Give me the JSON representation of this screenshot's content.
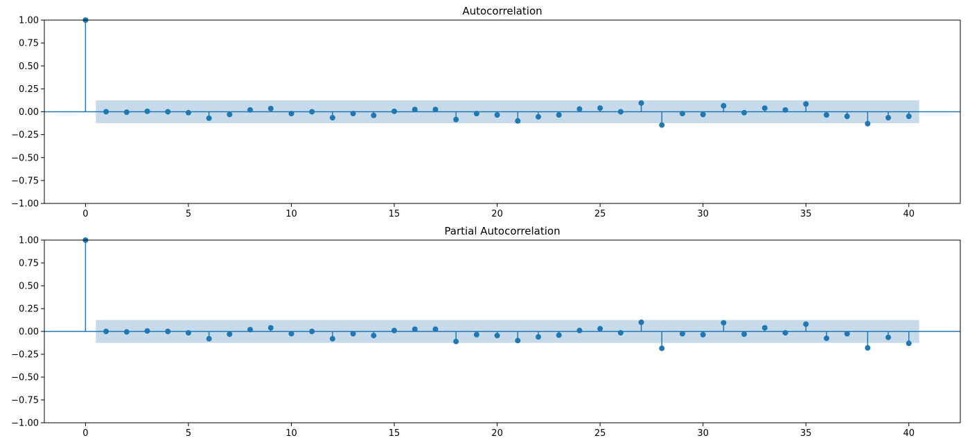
{
  "chart_data": [
    {
      "type": "stem",
      "title": "Autocorrelation",
      "xlabel": "",
      "ylabel": "",
      "xlim": [
        -2,
        42.5
      ],
      "ylim": [
        -1.0,
        1.0
      ],
      "x_ticks": [
        0,
        5,
        10,
        15,
        20,
        25,
        30,
        35,
        40
      ],
      "y_ticks": [
        -1.0,
        -0.75,
        -0.5,
        -0.25,
        0.0,
        0.25,
        0.5,
        0.75,
        1.0
      ],
      "y_tick_labels": [
        "−1.00",
        "−0.75",
        "−0.50",
        "−0.25",
        "0.00",
        "0.25",
        "0.50",
        "0.75",
        "1.00"
      ],
      "confidence_band": {
        "x": [
          0.5,
          40.5
        ],
        "upper": 0.125,
        "lower": -0.125
      },
      "grid": false,
      "lags": [
        0,
        1,
        2,
        3,
        4,
        5,
        6,
        7,
        8,
        9,
        10,
        11,
        12,
        13,
        14,
        15,
        16,
        17,
        18,
        19,
        20,
        21,
        22,
        23,
        24,
        25,
        26,
        27,
        28,
        29,
        30,
        31,
        32,
        33,
        34,
        35,
        36,
        37,
        38,
        39,
        40
      ],
      "values": [
        1.0,
        0.0,
        -0.005,
        0.005,
        0.0,
        -0.01,
        -0.07,
        -0.03,
        0.02,
        0.035,
        -0.02,
        0.0,
        -0.065,
        -0.02,
        -0.04,
        0.005,
        0.025,
        0.025,
        -0.085,
        -0.02,
        -0.035,
        -0.1,
        -0.055,
        -0.035,
        0.03,
        0.04,
        0.0,
        0.095,
        -0.145,
        -0.02,
        -0.03,
        0.065,
        -0.01,
        0.04,
        0.02,
        0.085,
        -0.035,
        -0.05,
        -0.13,
        -0.065,
        -0.05
      ]
    },
    {
      "type": "stem",
      "title": "Partial Autocorrelation",
      "xlabel": "",
      "ylabel": "",
      "xlim": [
        -2,
        42.5
      ],
      "ylim": [
        -1.0,
        1.0
      ],
      "x_ticks": [
        0,
        5,
        10,
        15,
        20,
        25,
        30,
        35,
        40
      ],
      "y_ticks": [
        -1.0,
        -0.75,
        -0.5,
        -0.25,
        0.0,
        0.25,
        0.5,
        0.75,
        1.0
      ],
      "y_tick_labels": [
        "−1.00",
        "−0.75",
        "−0.50",
        "−0.25",
        "0.00",
        "0.25",
        "0.50",
        "0.75",
        "1.00"
      ],
      "confidence_band": {
        "x": [
          0.5,
          40.5
        ],
        "upper": 0.125,
        "lower": -0.125
      },
      "grid": false,
      "lags": [
        0,
        1,
        2,
        3,
        4,
        5,
        6,
        7,
        8,
        9,
        10,
        11,
        12,
        13,
        14,
        15,
        16,
        17,
        18,
        19,
        20,
        21,
        22,
        23,
        24,
        25,
        26,
        27,
        28,
        29,
        30,
        31,
        32,
        33,
        34,
        35,
        36,
        37,
        38,
        39,
        40
      ],
      "values": [
        1.0,
        0.0,
        -0.005,
        0.005,
        0.0,
        -0.015,
        -0.08,
        -0.03,
        0.02,
        0.04,
        -0.025,
        0.0,
        -0.08,
        -0.025,
        -0.045,
        0.01,
        0.025,
        0.025,
        -0.11,
        -0.035,
        -0.045,
        -0.1,
        -0.06,
        -0.04,
        0.01,
        0.03,
        -0.015,
        0.1,
        -0.185,
        -0.025,
        -0.035,
        0.095,
        -0.03,
        0.04,
        -0.015,
        0.08,
        -0.075,
        -0.025,
        -0.18,
        -0.065,
        -0.13
      ]
    }
  ],
  "colors": {
    "stem": "#1f77b4",
    "band": "#b3cde3",
    "axes": "#000000",
    "background": "#ffffff"
  }
}
